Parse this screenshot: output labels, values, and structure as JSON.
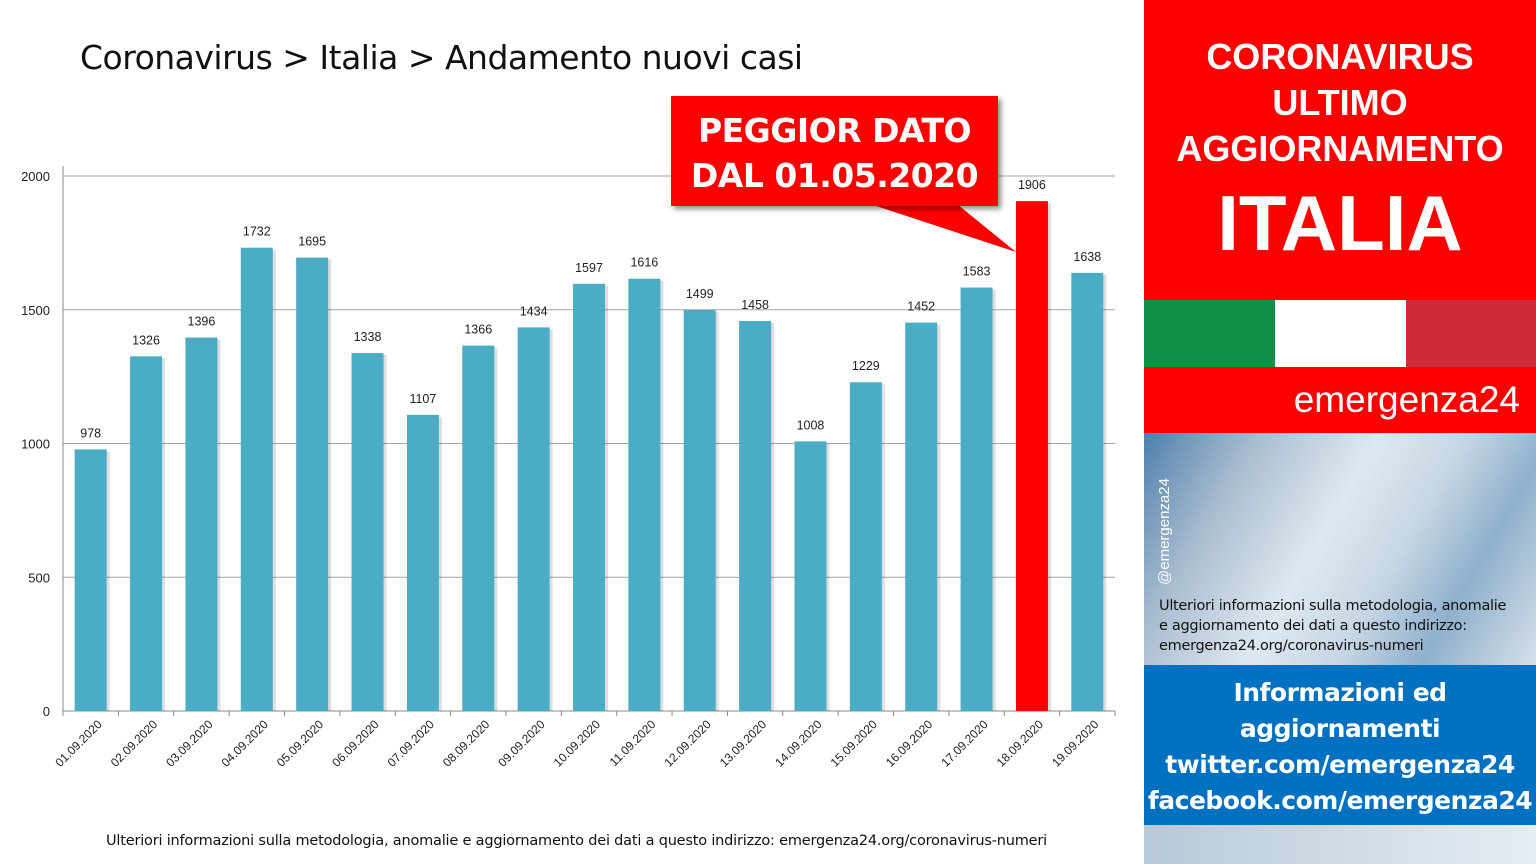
{
  "header": {
    "title": "Coronavirus > Italia > Andamento nuovi casi"
  },
  "callout": {
    "line1": "PEGGIOR DATO",
    "line2": "DAL 01.05.2020"
  },
  "footer": {
    "note": "Ulteriori informazioni sulla metodologia, anomalie e aggiornamento dei dati a questo indirizzo: emergenza24.org/coronavirus-numeri"
  },
  "sidebar": {
    "heading_line1": "CORONAVIRUS",
    "heading_line2": "ULTIMO",
    "heading_line3": "AGGIORNAMENTO",
    "country": "ITALIA",
    "brand": "emergenza24",
    "handle": "@emergenza24",
    "info_line1": "Ulteriori informazioni sulla metodologia, anomalie",
    "info_line2": "e aggiornamento dei dati a questo indirizzo:",
    "info_line3": "emergenza24.org/coronavirus-numeri",
    "social_line1": "Informazioni ed",
    "social_line2": "aggiornamenti",
    "social_line3": "twitter.com/emergenza24",
    "social_line4": "facebook.com/emergenza24"
  },
  "colors": {
    "bar": "#4bacc6",
    "highlight": "#ff0000",
    "brand_red": "#ff0000",
    "brand_blue": "#0070c0"
  },
  "chart_data": {
    "type": "bar",
    "title": "",
    "xlabel": "",
    "ylabel": "",
    "categories": [
      "01.09.2020",
      "02.09.2020",
      "03.09.2020",
      "04.09.2020",
      "05.09.2020",
      "06.09.2020",
      "07.09.2020",
      "08.09.2020",
      "09.09.2020",
      "10.09.2020",
      "11.09.2020",
      "12.09.2020",
      "13.09.2020",
      "14.09.2020",
      "15.09.2020",
      "16.09.2020",
      "17.09.2020",
      "18.09.2020",
      "19.09.2020"
    ],
    "values": [
      978,
      1326,
      1396,
      1732,
      1695,
      1338,
      1107,
      1366,
      1434,
      1597,
      1616,
      1499,
      1458,
      1008,
      1229,
      1452,
      1583,
      1906,
      1638
    ],
    "highlight_index": 17,
    "ylim": [
      0,
      2000
    ],
    "yticks": [
      0,
      500,
      1000,
      1500,
      2000
    ],
    "grid": true,
    "legend": "none"
  }
}
